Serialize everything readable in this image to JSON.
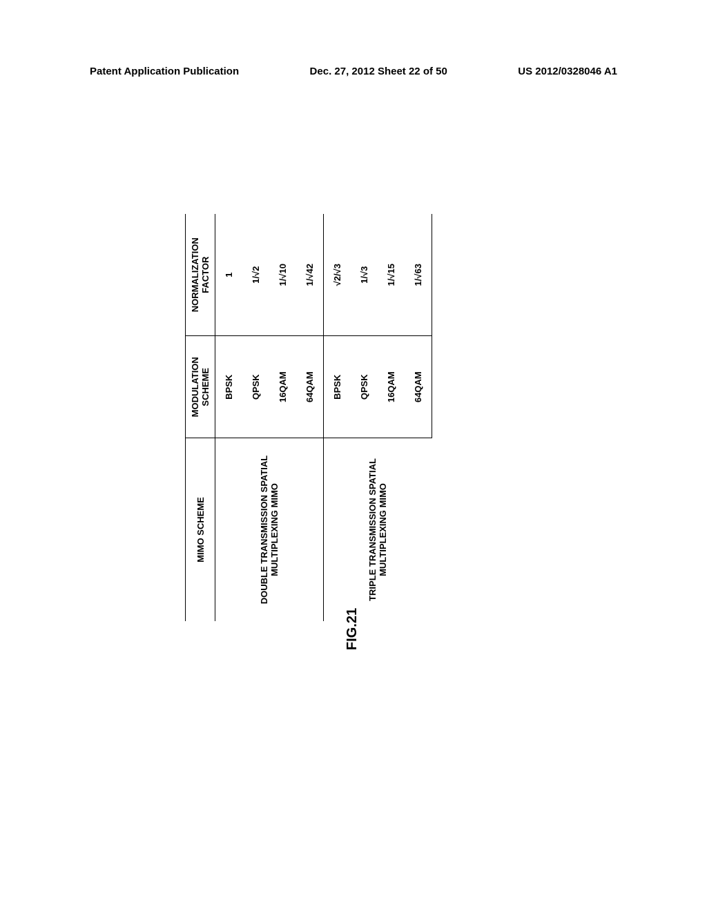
{
  "header": {
    "left": "Patent Application Publication",
    "center": "Dec. 27, 2012  Sheet 22 of 50",
    "right": "US 2012/0328046 A1"
  },
  "table": {
    "headers": {
      "mimo": "MIMO SCHEME",
      "modulation": "MODULATION SCHEME",
      "normalization": "NORMALIZATION FACTOR"
    },
    "groups": [
      {
        "label": "DOUBLE TRANSMISSION SPATIAL MULTIPLEXING MIMO",
        "rows": [
          {
            "modulation": "BPSK",
            "normalization": "1"
          },
          {
            "modulation": "QPSK",
            "normalization": "1/√2"
          },
          {
            "modulation": "16QAM",
            "normalization": "1/√10"
          },
          {
            "modulation": "64QAM",
            "normalization": "1/√42"
          }
        ]
      },
      {
        "label": "TRIPLE TRANSMISSION SPATIAL MULTIPLEXING MIMO",
        "rows": [
          {
            "modulation": "BPSK",
            "normalization": "√2/√3"
          },
          {
            "modulation": "QPSK",
            "normalization": "1/√3"
          },
          {
            "modulation": "16QAM",
            "normalization": "1/√15"
          },
          {
            "modulation": "64QAM",
            "normalization": "1/√63"
          }
        ]
      }
    ]
  },
  "figure_label": "FIG.21"
}
